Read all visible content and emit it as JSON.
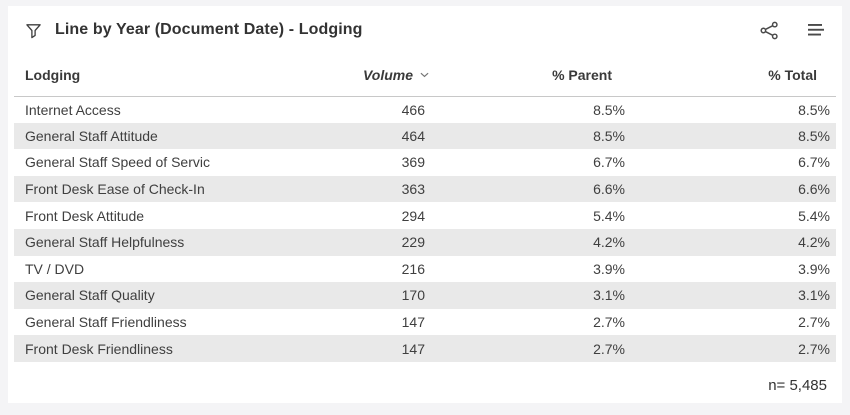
{
  "header": {
    "title": "Line by Year (Document Date) - Lodging",
    "filter_icon": "funnel-filter-icon",
    "share_icon": "share-linked-analysis-icon",
    "menu_icon": "hamburger-menu-icon"
  },
  "table": {
    "columns": [
      "Lodging",
      "Volume",
      "% Parent",
      "% Total"
    ],
    "sort": {
      "column": "Volume",
      "direction": "descending",
      "icon": "sort-descending-chevron-icon"
    },
    "rows": [
      [
        "Internet Access",
        "466",
        "8.5%",
        "8.5%"
      ],
      [
        "General Staff Attitude",
        "464",
        "8.5%",
        "8.5%"
      ],
      [
        "General Staff Speed of Servic",
        "369",
        "6.7%",
        "6.7%"
      ],
      [
        "Front Desk Ease of Check-In",
        "363",
        "6.6%",
        "6.6%"
      ],
      [
        "Front Desk Attitude",
        "294",
        "5.4%",
        "5.4%"
      ],
      [
        "General Staff Helpfulness",
        "229",
        "4.2%",
        "4.2%"
      ],
      [
        "TV / DVD",
        "216",
        "3.9%",
        "3.9%"
      ],
      [
        "General Staff Quality",
        "170",
        "3.1%",
        "3.1%"
      ],
      [
        "General Staff Friendliness",
        "147",
        "2.7%",
        "2.7%"
      ],
      [
        "Front Desk Friendliness",
        "147",
        "2.7%",
        "2.7%"
      ]
    ]
  },
  "footer": {
    "sample_note": "n= 5,485"
  },
  "colors": {
    "page_background": "#f4f4f6",
    "card_background": "#ffffff",
    "row_stripe": "#e9e9e9",
    "text": "#3f3f3f",
    "header_divider": "#c8c8c8",
    "icon": "#4a4a4a"
  },
  "chart_data": {
    "type": "table",
    "title": "Line by Year (Document Date) - Lodging",
    "columns": [
      "Lodging",
      "Volume",
      "% Parent",
      "% Total"
    ],
    "categories": [
      "Internet Access",
      "General Staff Attitude",
      "General Staff Speed of Servic",
      "Front Desk Ease of Check-In",
      "Front Desk Attitude",
      "General Staff Helpfulness",
      "TV / DVD",
      "General Staff Quality",
      "General Staff Friendliness",
      "Front Desk Friendliness"
    ],
    "series": [
      {
        "name": "Volume",
        "values": [
          466,
          464,
          369,
          363,
          294,
          229,
          216,
          170,
          147,
          147
        ]
      },
      {
        "name": "% Parent",
        "values": [
          8.5,
          8.5,
          6.7,
          6.6,
          5.4,
          4.2,
          3.9,
          3.1,
          2.7,
          2.7
        ]
      },
      {
        "name": "% Total",
        "values": [
          8.5,
          8.5,
          6.7,
          6.6,
          5.4,
          4.2,
          3.9,
          3.1,
          2.7,
          2.7
        ]
      }
    ],
    "sample_size": 5485,
    "sort": "Volume descending"
  }
}
